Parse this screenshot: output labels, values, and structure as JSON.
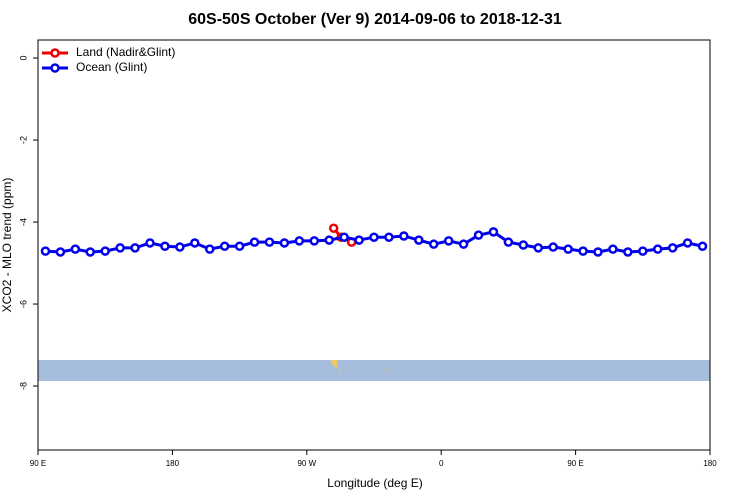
{
  "chart_data": {
    "type": "line",
    "title": "60S-50S October (Ver 9)   2014-09-06 to 2018-12-31",
    "x_label": "Longitude (deg E)",
    "y_label": "XCO2 - MLO trend (ppm)",
    "xlim": [
      90,
      540
    ],
    "xticks": [
      {
        "value": 90,
        "label": "90 E"
      },
      {
        "value": 180,
        "label": "180"
      },
      {
        "value": 270,
        "label": "90 W"
      },
      {
        "value": 360,
        "label": "0"
      },
      {
        "value": 450,
        "label": "90 E"
      },
      {
        "value": 540,
        "label": "180"
      }
    ],
    "ylim": [
      -9.56,
      0.44
    ],
    "yticks": [
      0,
      -2,
      -4,
      -6,
      -8
    ],
    "legend": "top-left",
    "series": [
      {
        "name": "Land (Nadir&Glint)",
        "color": "#ee0000",
        "x": [
          288,
          293,
          300
        ],
        "values": [
          -4.15,
          -4.37,
          -4.49
        ]
      },
      {
        "name": "Ocean (Glint)",
        "color": "#0000ee",
        "x": [
          95,
          105,
          115,
          125,
          135,
          145,
          155,
          165,
          175,
          185,
          195,
          205,
          215,
          225,
          235,
          245,
          255,
          265,
          275,
          285,
          295,
          305,
          315,
          325,
          335,
          345,
          355,
          365,
          375,
          385,
          395,
          405,
          415,
          425,
          435,
          445,
          455,
          465,
          475,
          485,
          495,
          505,
          515,
          525,
          535
        ],
        "values": [
          -4.71,
          -4.73,
          -4.66,
          -4.73,
          -4.71,
          -4.63,
          -4.63,
          -4.51,
          -4.59,
          -4.61,
          -4.51,
          -4.66,
          -4.59,
          -4.59,
          -4.49,
          -4.49,
          -4.51,
          -4.46,
          -4.46,
          -4.44,
          -4.37,
          -4.44,
          -4.37,
          -4.37,
          -4.34,
          -4.44,
          -4.54,
          -4.46,
          -4.54,
          -4.32,
          -4.24,
          -4.49,
          -4.56,
          -4.63,
          -4.61,
          -4.66,
          -4.71,
          -4.73,
          -4.66,
          -4.73,
          -4.71,
          -4.66,
          -4.63,
          -4.51,
          -4.59
        ]
      }
    ]
  }
}
